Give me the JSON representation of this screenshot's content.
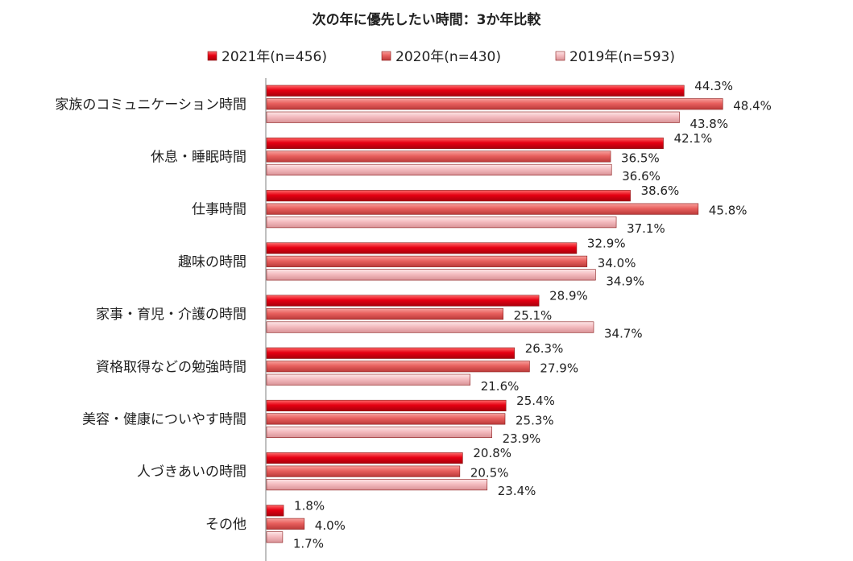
{
  "chart_data": {
    "type": "bar",
    "orientation": "horizontal",
    "title": "次の年に優先したい時間：3か年比較",
    "categories": [
      "家族のコミュニケーション時間",
      "休息・睡眠時間",
      "仕事時間",
      "趣味の時間",
      "家事・育児・介護の時間",
      "資格取得などの勉強時間",
      "美容・健康についやす時間",
      "人づきあいの時間",
      "その他"
    ],
    "series": [
      {
        "name": "2021年(n=456)",
        "color": "#e60012",
        "values": [
          44.3,
          42.1,
          38.6,
          32.9,
          28.9,
          26.3,
          25.4,
          20.8,
          1.8
        ]
      },
      {
        "name": "2020年(n=430)",
        "color": "#e8605e",
        "values": [
          48.4,
          36.5,
          45.8,
          34.0,
          25.1,
          27.9,
          25.3,
          20.5,
          4.0
        ]
      },
      {
        "name": "2019年(n=593)",
        "color": "#f4bcc0",
        "values": [
          43.8,
          36.6,
          37.1,
          34.9,
          34.7,
          21.6,
          23.9,
          23.4,
          1.7
        ]
      }
    ],
    "value_suffix": "%",
    "legend_position": "top",
    "xlim": [
      0,
      50
    ],
    "xlabel": "",
    "ylabel": ""
  }
}
